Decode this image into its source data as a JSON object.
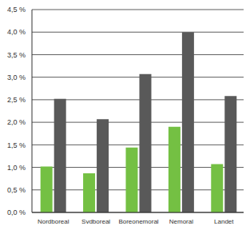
{
  "chart_data": {
    "type": "bar",
    "categories": [
      "Nordboreal",
      "Sydboreal",
      "Boreonemoral",
      "Nemoral",
      "Landet"
    ],
    "series": [
      {
        "color": "#74c043",
        "values": [
          1.02,
          0.87,
          1.44,
          1.9,
          1.07
        ]
      },
      {
        "color": "#595959",
        "values": [
          2.52,
          2.07,
          3.07,
          4.0,
          2.58
        ]
      }
    ],
    "ylim": [
      0,
      4.5
    ],
    "yticks": [
      {
        "value": 0,
        "label": "0,0 %"
      },
      {
        "value": 0.5,
        "label": "0,5 %"
      },
      {
        "value": 1,
        "label": "1,0 %"
      },
      {
        "value": 1.5,
        "label": "1,5 %"
      },
      {
        "value": 2,
        "label": "2,0 %"
      },
      {
        "value": 2.5,
        "label": "2,5 %"
      },
      {
        "value": 3,
        "label": "3,0 %"
      },
      {
        "value": 3.5,
        "label": "3,5 %"
      },
      {
        "value": 4,
        "label": "4,0 %"
      },
      {
        "value": 4.5,
        "label": "4,5 %"
      }
    ],
    "grid": true
  }
}
